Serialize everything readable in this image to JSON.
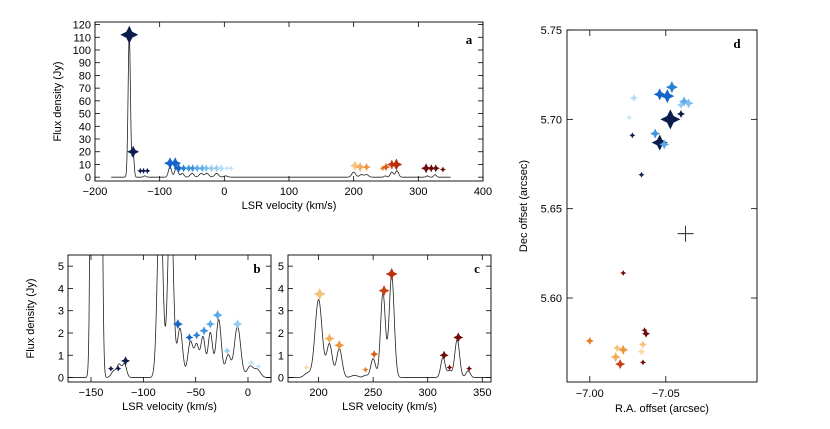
{
  "chart_data": [
    {
      "id": "a",
      "type": "line",
      "panel_label": "a",
      "xlabel": "LSR velocity (km/s)",
      "ylabel": "Flux density (Jy)",
      "xlim": [
        -200,
        400
      ],
      "ylim": [
        -3,
        122
      ],
      "xticks": [
        -200,
        -100,
        0,
        100,
        200,
        300,
        400
      ],
      "yticks": [
        0,
        10,
        20,
        30,
        40,
        50,
        60,
        70,
        80,
        90,
        100,
        110,
        120
      ],
      "spectrum_range": [
        -175,
        350
      ],
      "peaks": [
        {
          "v": -147,
          "f": 112,
          "w": 1.8
        },
        {
          "v": -141,
          "f": 19,
          "w": 1.5
        },
        {
          "v": -123,
          "f": 1,
          "w": 2
        },
        {
          "v": -84,
          "f": 8,
          "w": 2.5
        },
        {
          "v": -74,
          "f": 8,
          "w": 2.5
        },
        {
          "v": -65,
          "f": 3,
          "w": 2.5
        },
        {
          "v": -50,
          "f": 3,
          "w": 3
        },
        {
          "v": -36,
          "f": 3,
          "w": 3
        },
        {
          "v": -27,
          "f": 3,
          "w": 3
        },
        {
          "v": -12,
          "f": 3,
          "w": 3
        },
        {
          "v": 2,
          "f": 1,
          "w": 3
        },
        {
          "v": 200,
          "f": 4,
          "w": 3
        },
        {
          "v": 212,
          "f": 2,
          "w": 3
        },
        {
          "v": 220,
          "f": 2,
          "w": 3
        },
        {
          "v": 249,
          "f": 1,
          "w": 2
        },
        {
          "v": 259,
          "f": 4,
          "w": 2.5
        },
        {
          "v": 267,
          "f": 5,
          "w": 2.5
        },
        {
          "v": 314,
          "f": 1,
          "w": 2
        },
        {
          "v": 326,
          "f": 2,
          "w": 2
        }
      ],
      "markers": [
        {
          "v": -147,
          "f": 112,
          "size": 9,
          "color": "#0c1c4c"
        },
        {
          "v": -141,
          "f": 20,
          "size": 6,
          "color": "#0c1c4c"
        },
        {
          "v": -130,
          "f": 5,
          "size": 3,
          "color": "#0c1c4c"
        },
        {
          "v": -125,
          "f": 5,
          "size": 3,
          "color": "#0c1c4c"
        },
        {
          "v": -119,
          "f": 5,
          "size": 3,
          "color": "#0c1c4c"
        },
        {
          "v": -84,
          "f": 11,
          "size": 6,
          "color": "#1565c8"
        },
        {
          "v": -76,
          "f": 11,
          "size": 6,
          "color": "#1565c8"
        },
        {
          "v": -71,
          "f": 7,
          "size": 5,
          "color": "#1565c8"
        },
        {
          "v": -63,
          "f": 7,
          "size": 4,
          "color": "#2a7fd6"
        },
        {
          "v": -55,
          "f": 7,
          "size": 4,
          "color": "#3f95e0"
        },
        {
          "v": -49,
          "f": 7,
          "size": 4,
          "color": "#3f95e0"
        },
        {
          "v": -42,
          "f": 7,
          "size": 4,
          "color": "#5aaae8"
        },
        {
          "v": -34,
          "f": 7,
          "size": 4,
          "color": "#5aaae8"
        },
        {
          "v": -28,
          "f": 7,
          "size": 4,
          "color": "#7cc0f0"
        },
        {
          "v": -20,
          "f": 7,
          "size": 4,
          "color": "#94cdf2"
        },
        {
          "v": -12,
          "f": 7,
          "size": 4,
          "color": "#94cdf2"
        },
        {
          "v": -5,
          "f": 7,
          "size": 4,
          "color": "#b4dcf5"
        },
        {
          "v": 4,
          "f": 7,
          "size": 3,
          "color": "#c4e4f8"
        },
        {
          "v": 10,
          "f": 7,
          "size": 3,
          "color": "#c4e4f8"
        },
        {
          "v": 202,
          "f": 9,
          "size": 5,
          "color": "#f5c27a"
        },
        {
          "v": 210,
          "f": 8,
          "size": 5,
          "color": "#f3ae5e"
        },
        {
          "v": 220,
          "f": 8,
          "size": 4,
          "color": "#ee9440"
        },
        {
          "v": 245,
          "f": 7,
          "size": 3,
          "color": "#e87a24"
        },
        {
          "v": 250,
          "f": 8,
          "size": 4,
          "color": "#d85a14"
        },
        {
          "v": 259,
          "f": 10,
          "size": 5,
          "color": "#c84010"
        },
        {
          "v": 266,
          "f": 10,
          "size": 6,
          "color": "#b8300c"
        },
        {
          "v": 312,
          "f": 7,
          "size": 5,
          "color": "#6e0a0a"
        },
        {
          "v": 320,
          "f": 7,
          "size": 4,
          "color": "#6e0a0a"
        },
        {
          "v": 327,
          "f": 7,
          "size": 4,
          "color": "#6e0a0a"
        },
        {
          "v": 338,
          "f": 6,
          "size": 3,
          "color": "#6e0a0a"
        }
      ]
    },
    {
      "id": "b",
      "type": "line",
      "panel_label": "b",
      "xlabel": "LSR velocity (km/s)",
      "ylabel": "Flux density (Jy)",
      "xlim": [
        -172,
        22
      ],
      "ylim": [
        -0.2,
        5.5
      ],
      "xticks": [
        -150,
        -100,
        -50,
        0
      ],
      "yticks": [
        0,
        1,
        2,
        3,
        4,
        5
      ],
      "spectrum_range": [
        -172,
        22
      ],
      "peaks": [
        {
          "v": -147,
          "f": 112,
          "w": 1.8
        },
        {
          "v": -141,
          "f": 19,
          "w": 1.5
        },
        {
          "v": -128,
          "f": 0.3,
          "w": 2.5
        },
        {
          "v": -123,
          "f": 0.55,
          "w": 2
        },
        {
          "v": -118,
          "f": 0.6,
          "w": 2
        },
        {
          "v": -84,
          "f": 8.5,
          "w": 2.5
        },
        {
          "v": -74,
          "f": 8.5,
          "w": 2.5
        },
        {
          "v": -65,
          "f": 2.2,
          "w": 2.5
        },
        {
          "v": -55,
          "f": 1.6,
          "w": 2.5
        },
        {
          "v": -49,
          "f": 1.4,
          "w": 2.2
        },
        {
          "v": -43,
          "f": 1.8,
          "w": 2.2
        },
        {
          "v": -36,
          "f": 2.0,
          "w": 2.2
        },
        {
          "v": -28,
          "f": 2.6,
          "w": 2.5
        },
        {
          "v": -19,
          "f": 1.0,
          "w": 2.5
        },
        {
          "v": -10,
          "f": 2.3,
          "w": 3
        },
        {
          "v": 2,
          "f": 0.5,
          "w": 3
        },
        {
          "v": 9,
          "f": 0.35,
          "w": 3
        }
      ],
      "markers": [
        {
          "v": -131,
          "f": 0.4,
          "size": 3,
          "color": "#0c1c4c"
        },
        {
          "v": -124,
          "f": 0.4,
          "size": 3,
          "color": "#0c1c4c"
        },
        {
          "v": -117,
          "f": 0.75,
          "size": 4.5,
          "color": "#0c1c4c"
        },
        {
          "v": -67,
          "f": 2.4,
          "size": 5,
          "color": "#1565c8"
        },
        {
          "v": -56,
          "f": 1.8,
          "size": 4,
          "color": "#1565c8"
        },
        {
          "v": -49,
          "f": 1.9,
          "size": 4,
          "color": "#2a7fd6"
        },
        {
          "v": -42,
          "f": 2.1,
          "size": 4.5,
          "color": "#3f95e0"
        },
        {
          "v": -36,
          "f": 2.4,
          "size": 4.5,
          "color": "#5aaae8"
        },
        {
          "v": -29,
          "f": 2.8,
          "size": 5,
          "color": "#5aaae8"
        },
        {
          "v": -20,
          "f": 1.2,
          "size": 3.5,
          "color": "#94cdf2"
        },
        {
          "v": -10,
          "f": 2.4,
          "size": 5,
          "color": "#94cdf2"
        },
        {
          "v": 3,
          "f": 0.65,
          "size": 3.5,
          "color": "#c4e4f8"
        },
        {
          "v": 10,
          "f": 0.5,
          "size": 3,
          "color": "#c4e4f8"
        }
      ]
    },
    {
      "id": "c",
      "type": "line",
      "panel_label": "c",
      "xlabel": "LSR velocity (km/s)",
      "ylabel": "",
      "xlim": [
        172,
        358
      ],
      "ylim": [
        -0.2,
        5.5
      ],
      "xticks": [
        200,
        250,
        300,
        350
      ],
      "yticks": [
        0,
        1,
        2,
        3,
        4,
        5
      ],
      "spectrum_range": [
        172,
        358
      ],
      "peaks": [
        {
          "v": 190,
          "f": 0.2,
          "w": 3
        },
        {
          "v": 200,
          "f": 3.5,
          "w": 3.2
        },
        {
          "v": 210,
          "f": 1.5,
          "w": 2.5
        },
        {
          "v": 219,
          "f": 1.3,
          "w": 2.5
        },
        {
          "v": 233,
          "f": 0.1,
          "w": 3
        },
        {
          "v": 243,
          "f": 0.1,
          "w": 2
        },
        {
          "v": 250,
          "f": 0.85,
          "w": 2.2
        },
        {
          "v": 259,
          "f": 3.8,
          "w": 2.2
        },
        {
          "v": 267,
          "f": 4.6,
          "w": 2.3
        },
        {
          "v": 314,
          "f": 0.9,
          "w": 2
        },
        {
          "v": 320,
          "f": 0.3,
          "w": 2
        },
        {
          "v": 327,
          "f": 1.7,
          "w": 2.2
        },
        {
          "v": 337,
          "f": 0.3,
          "w": 2
        }
      ],
      "markers": [
        {
          "v": 189,
          "f": 0.45,
          "size": 3,
          "color": "#f9d9a8"
        },
        {
          "v": 201,
          "f": 3.75,
          "size": 6,
          "color": "#f5c27a"
        },
        {
          "v": 210,
          "f": 1.75,
          "size": 5,
          "color": "#f3ae5e"
        },
        {
          "v": 219,
          "f": 1.45,
          "size": 5,
          "color": "#ee9440"
        },
        {
          "v": 243,
          "f": 0.35,
          "size": 3,
          "color": "#e87a24"
        },
        {
          "v": 251,
          "f": 1.05,
          "size": 4,
          "color": "#d85a14"
        },
        {
          "v": 260,
          "f": 3.9,
          "size": 5.5,
          "color": "#c84010"
        },
        {
          "v": 267,
          "f": 4.65,
          "size": 6,
          "color": "#b8300c"
        },
        {
          "v": 315,
          "f": 1.0,
          "size": 4.5,
          "color": "#6e0a0a"
        },
        {
          "v": 320,
          "f": 0.45,
          "size": 3,
          "color": "#6e0a0a"
        },
        {
          "v": 328,
          "f": 1.8,
          "size": 5,
          "color": "#6e0a0a"
        },
        {
          "v": 338,
          "f": 0.4,
          "size": 3,
          "color": "#6e0a0a"
        }
      ]
    },
    {
      "id": "d",
      "type": "scatter",
      "panel_label": "d",
      "xlabel": "R.A. offset (arcsec)",
      "ylabel": "Dec offset (arcsec)",
      "xlim": [
        -6.985,
        -7.11
      ],
      "ylim": [
        5.553,
        5.75
      ],
      "xticks": [
        -7.0,
        -7.05
      ],
      "xtick_labels": [
        "-7.00",
        "-7.05"
      ],
      "yticks": [
        5.6,
        5.65,
        5.7,
        5.75
      ],
      "ytick_labels": [
        "5.60",
        "5.65",
        "5.70",
        "5.75"
      ],
      "reference_cross": {
        "x": -7.063,
        "y": 5.636
      },
      "points": [
        {
          "x": -7.053,
          "y": 5.7,
          "size": 10,
          "color": "#0c1c4c"
        },
        {
          "x": -7.046,
          "y": 5.687,
          "size": 8,
          "color": "#0c1c4c"
        },
        {
          "x": -7.06,
          "y": 5.703,
          "size": 4,
          "color": "#0c1c4c"
        },
        {
          "x": -7.034,
          "y": 5.669,
          "size": 3,
          "color": "#0c1c4c"
        },
        {
          "x": -7.028,
          "y": 5.691,
          "size": 3,
          "color": "#0c1c4c"
        },
        {
          "x": -7.051,
          "y": 5.713,
          "size": 7,
          "color": "#1565c8"
        },
        {
          "x": -7.046,
          "y": 5.714,
          "size": 6,
          "color": "#1565c8"
        },
        {
          "x": -7.054,
          "y": 5.718,
          "size": 6,
          "color": "#2a7fd6"
        },
        {
          "x": -7.043,
          "y": 5.692,
          "size": 5,
          "color": "#3f95e0"
        },
        {
          "x": -7.049,
          "y": 5.686,
          "size": 5,
          "color": "#5aaae8"
        },
        {
          "x": -7.062,
          "y": 5.71,
          "size": 5,
          "color": "#5aaae8"
        },
        {
          "x": -7.065,
          "y": 5.709,
          "size": 5,
          "color": "#7cc0f0"
        },
        {
          "x": -7.06,
          "y": 5.708,
          "size": 4,
          "color": "#94cdf2"
        },
        {
          "x": -7.029,
          "y": 5.712,
          "size": 4,
          "color": "#b4dcf5"
        },
        {
          "x": -7.026,
          "y": 5.701,
          "size": 3,
          "color": "#c4e4f8"
        },
        {
          "x": -7.0,
          "y": 5.576,
          "size": 4,
          "color": "#e87a24"
        },
        {
          "x": -7.018,
          "y": 5.572,
          "size": 4,
          "color": "#f5c27a"
        },
        {
          "x": -7.017,
          "y": 5.567,
          "size": 5,
          "color": "#f3ae5e"
        },
        {
          "x": -7.022,
          "y": 5.571,
          "size": 5,
          "color": "#ee9440"
        },
        {
          "x": -7.02,
          "y": 5.563,
          "size": 5,
          "color": "#c84010"
        },
        {
          "x": -7.035,
          "y": 5.574,
          "size": 4,
          "color": "#f5c27a"
        },
        {
          "x": -7.034,
          "y": 5.57,
          "size": 4,
          "color": "#f9d9a8"
        },
        {
          "x": -7.037,
          "y": 5.58,
          "size": 4,
          "color": "#6e0a0a"
        },
        {
          "x": -7.036,
          "y": 5.582,
          "size": 3,
          "color": "#6e0a0a"
        },
        {
          "x": -7.035,
          "y": 5.564,
          "size": 3,
          "color": "#6e0a0a"
        },
        {
          "x": -7.022,
          "y": 5.614,
          "size": 3,
          "color": "#6e0a0a"
        }
      ]
    }
  ]
}
